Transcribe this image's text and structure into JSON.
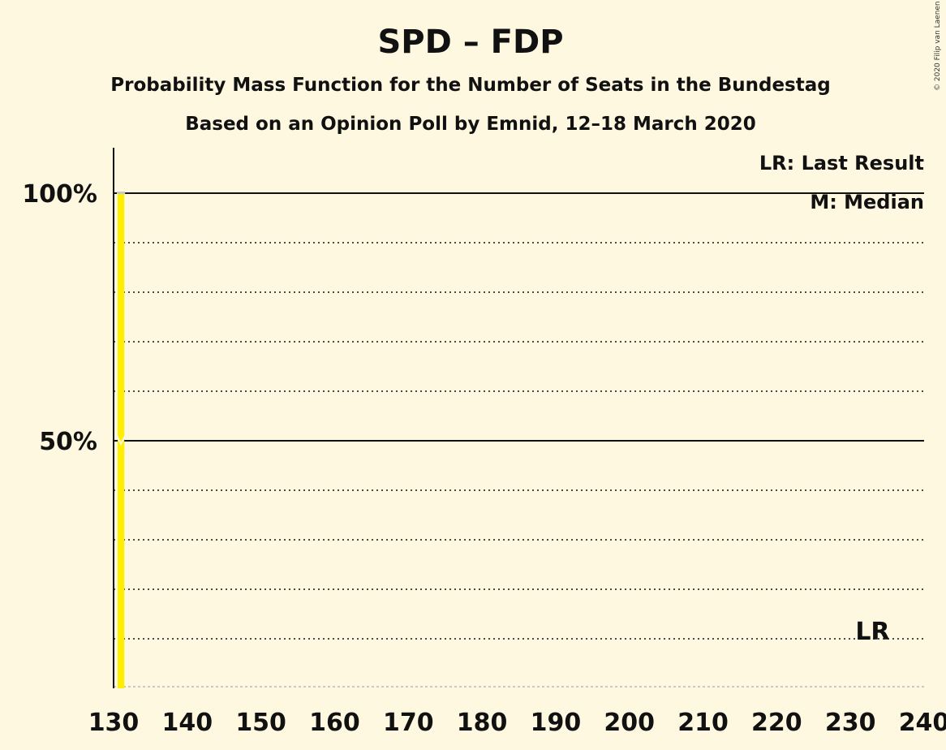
{
  "chart_data": {
    "type": "bar",
    "title": "SPD – FDP",
    "subtitle": "Probability Mass Function for the Number of Seats in the Bundestag",
    "subtitle2": "Based on an Opinion Poll by Emnid, 12–18 March 2020",
    "copyright": "© 2020 Filip van Laenen",
    "xlim": [
      130,
      240
    ],
    "ylim": [
      0,
      1
    ],
    "x_ticks": [
      130,
      140,
      150,
      160,
      170,
      180,
      190,
      200,
      210,
      220,
      230,
      240
    ],
    "x_tick_labels": [
      "130",
      "140",
      "150",
      "160",
      "170",
      "180",
      "190",
      "200",
      "210",
      "220",
      "230",
      "240"
    ],
    "y_tick_labels": [
      {
        "value": 0.5,
        "label": "50%"
      },
      {
        "value": 1.0,
        "label": "100%"
      }
    ],
    "grid": true,
    "gridlines_dotted": [
      0.1,
      0.2,
      0.3,
      0.4,
      0.6,
      0.7,
      0.8,
      0.9
    ],
    "gridlines_solid": [
      0.5,
      1.0
    ],
    "series": [
      {
        "x": [
          131
        ],
        "values": [
          1.0
        ],
        "color": "#FFEE00"
      }
    ],
    "median": 131,
    "last_result": 233,
    "last_result_label": "LR",
    "legend": {
      "placement": "top-right",
      "items": [
        "LR: Last Result",
        "M: Median"
      ]
    }
  }
}
